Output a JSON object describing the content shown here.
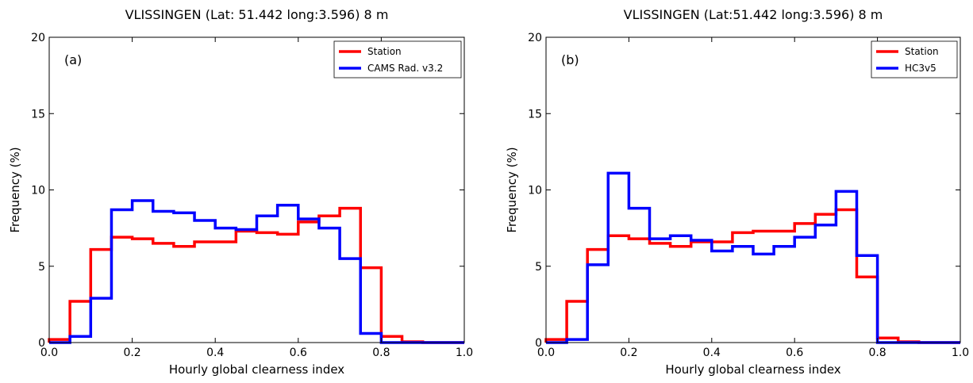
{
  "chart_data": [
    {
      "type": "step",
      "title": "VLISSINGEN (Lat: 51.442  long:3.596) 8 m",
      "panel_label": "(a)",
      "xlabel": "Hourly global clearness index",
      "ylabel": "Frequency (%)",
      "xlim": [
        0.0,
        1.0
      ],
      "ylim": [
        0,
        20
      ],
      "xticks": [
        0.0,
        0.2,
        0.4,
        0.6,
        0.8,
        1.0
      ],
      "xtick_labels": [
        "0.0",
        "0.2",
        "0.4",
        "0.6",
        "0.8",
        "1.0"
      ],
      "yticks": [
        0,
        5,
        10,
        15,
        20
      ],
      "ytick_labels": [
        "0",
        "5",
        "10",
        "15",
        "20"
      ],
      "bin_edges": [
        0.0,
        0.05,
        0.1,
        0.15,
        0.2,
        0.25,
        0.3,
        0.35,
        0.4,
        0.45,
        0.5,
        0.55,
        0.6,
        0.65,
        0.7,
        0.75,
        0.8,
        0.85,
        0.9,
        0.95,
        1.0
      ],
      "legend_position": "top-right",
      "series": [
        {
          "name": "Station",
          "color": "#ff0000",
          "values": [
            0.2,
            2.7,
            6.1,
            6.9,
            6.8,
            6.5,
            6.3,
            6.6,
            6.6,
            7.3,
            7.2,
            7.1,
            7.9,
            8.3,
            8.8,
            4.9,
            0.4,
            0.05,
            0.0,
            0.0
          ]
        },
        {
          "name": "CAMS Rad. v3.2",
          "color": "#0000ff",
          "values": [
            0.0,
            0.4,
            2.9,
            8.7,
            9.3,
            8.6,
            8.5,
            8.0,
            7.5,
            7.4,
            8.3,
            9.0,
            8.1,
            7.5,
            5.5,
            0.6,
            0.0,
            0.0,
            0.0,
            0.0
          ]
        }
      ]
    },
    {
      "type": "step",
      "title": "VLISSINGEN (Lat:51.442  long:3.596) 8 m",
      "panel_label": "(b)",
      "xlabel": "Hourly global clearness index",
      "ylabel": "Frequency (%)",
      "xlim": [
        0.0,
        1.0
      ],
      "ylim": [
        0,
        20
      ],
      "xticks": [
        0.0,
        0.2,
        0.4,
        0.6,
        0.8,
        1.0
      ],
      "xtick_labels": [
        "0.0",
        "0.2",
        "0.4",
        "0.6",
        "0.8",
        "1.0"
      ],
      "yticks": [
        0,
        5,
        10,
        15,
        20
      ],
      "ytick_labels": [
        "0",
        "5",
        "10",
        "15",
        "20"
      ],
      "bin_edges": [
        0.0,
        0.05,
        0.1,
        0.15,
        0.2,
        0.25,
        0.3,
        0.35,
        0.4,
        0.45,
        0.5,
        0.55,
        0.6,
        0.65,
        0.7,
        0.75,
        0.8,
        0.85,
        0.9,
        0.95,
        1.0
      ],
      "legend_position": "top-right",
      "series": [
        {
          "name": "Station",
          "color": "#ff0000",
          "values": [
            0.2,
            2.7,
            6.1,
            7.0,
            6.8,
            6.5,
            6.3,
            6.6,
            6.6,
            7.2,
            7.3,
            7.3,
            7.8,
            8.4,
            8.7,
            4.3,
            0.3,
            0.05,
            0.0,
            0.0
          ]
        },
        {
          "name": "HC3v5",
          "color": "#0000ff",
          "values": [
            0.0,
            0.2,
            5.1,
            11.1,
            8.8,
            6.8,
            7.0,
            6.7,
            6.0,
            6.3,
            5.8,
            6.3,
            6.9,
            7.7,
            9.9,
            5.7,
            0.0,
            0.0,
            0.0,
            0.0
          ]
        }
      ]
    }
  ]
}
